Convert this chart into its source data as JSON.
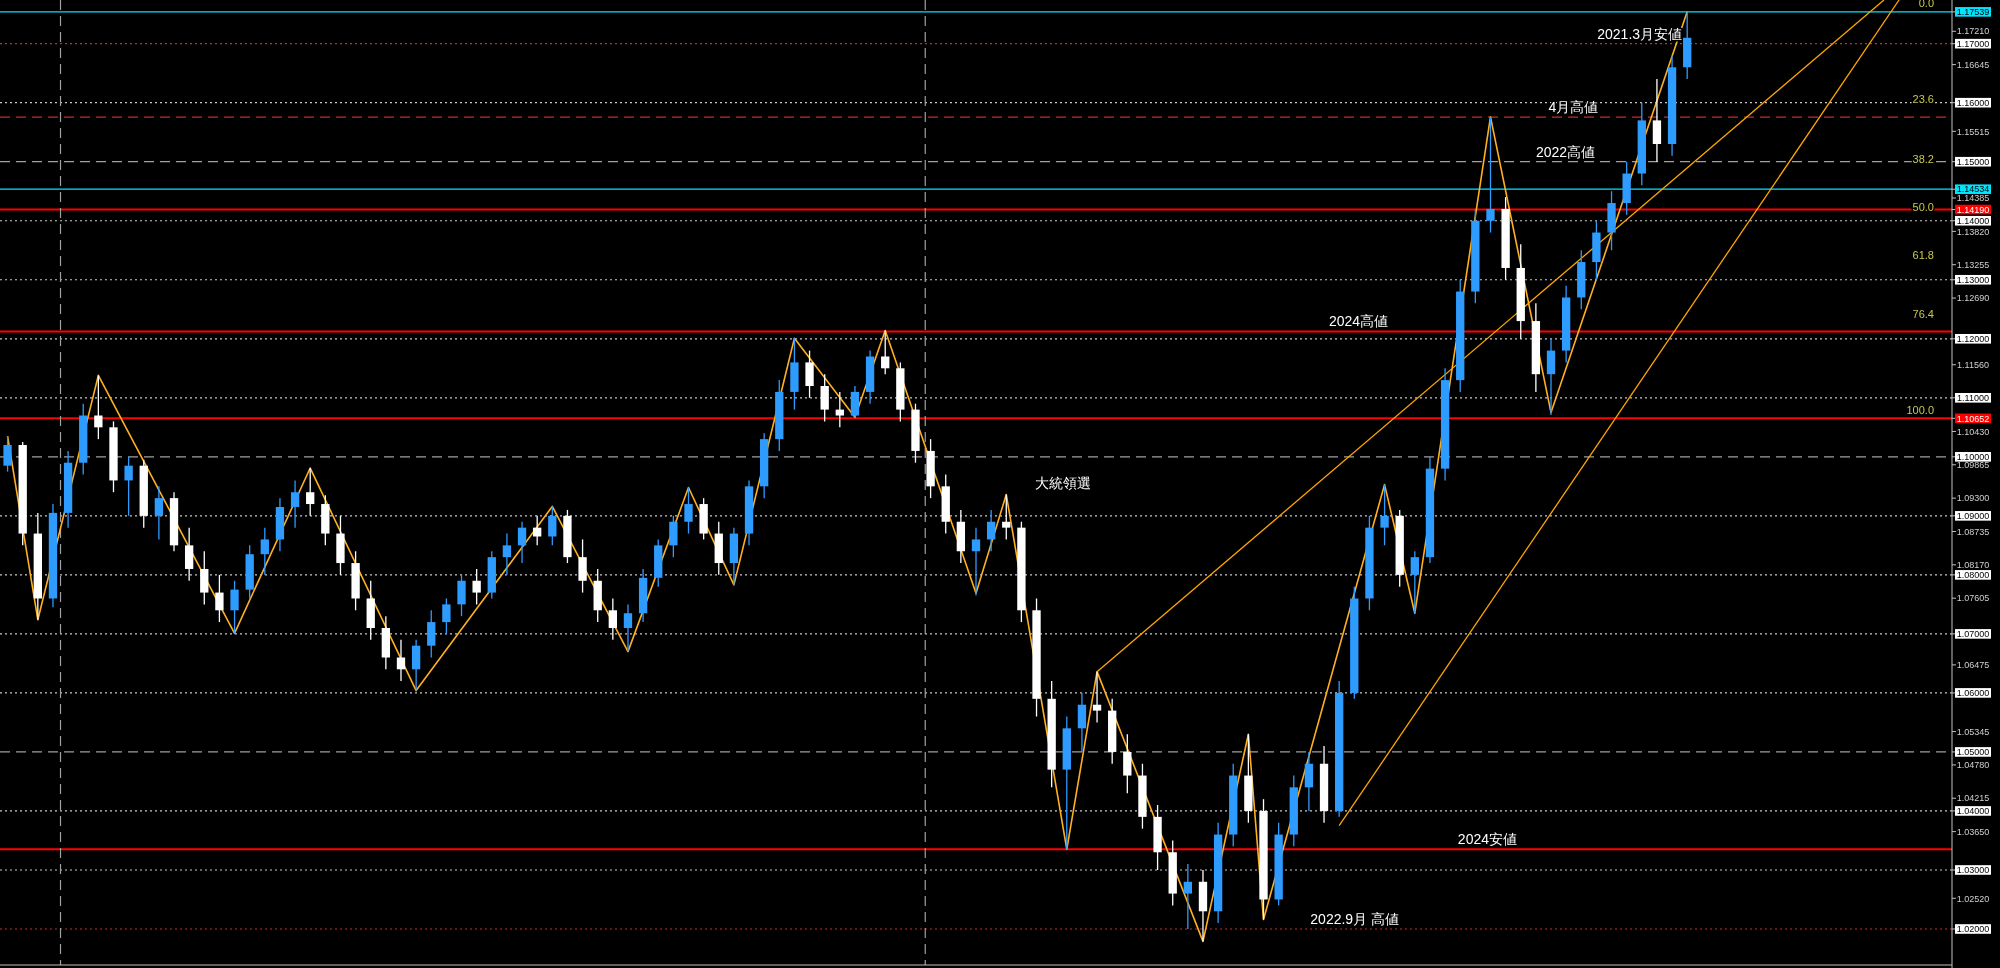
{
  "chart_data": {
    "type": "candlestick",
    "tick_labels": "y",
    "ylim": [
      1.0139,
      1.1774
    ],
    "yticks": [
      {
        "value": 1.17539,
        "label": "1.17539"
      },
      {
        "value": 1.17,
        "label": "1.17000"
      },
      {
        "value": 1.16,
        "label": "1.16000"
      },
      {
        "value": 1.15,
        "label": "1.15000"
      },
      {
        "value": 1.14534,
        "label": "1.14534"
      },
      {
        "value": 1.1419,
        "label": "1.14190"
      },
      {
        "value": 1.14,
        "label": "1.14000"
      },
      {
        "value": 1.13,
        "label": "1.13000"
      },
      {
        "value": 1.12,
        "label": "1.12000"
      },
      {
        "value": 1.11,
        "label": "1.11000"
      },
      {
        "value": 1.10652,
        "label": "1.10652"
      },
      {
        "value": 1.1,
        "label": "1.10000"
      },
      {
        "value": 1.09,
        "label": "1.09000"
      },
      {
        "value": 1.08,
        "label": "1.08000"
      },
      {
        "value": 1.07,
        "label": "1.07000"
      },
      {
        "value": 1.06,
        "label": "1.06000"
      },
      {
        "value": 1.05,
        "label": "1.05000"
      },
      {
        "value": 1.04,
        "label": "1.04000"
      },
      {
        "value": 1.03,
        "label": "1.03000"
      },
      {
        "value": 1.02,
        "label": "1.02000"
      },
      {
        "value": 1.1721,
        "label": "1.17210"
      },
      {
        "value": 1.16645,
        "label": "1.16645"
      },
      {
        "value": 1.15515,
        "label": "1.15515"
      },
      {
        "value": 1.14385,
        "label": "1.14385"
      },
      {
        "value": 1.1382,
        "label": "1.13820"
      },
      {
        "value": 1.13255,
        "label": "1.13255"
      },
      {
        "value": 1.1269,
        "label": "1.12690"
      },
      {
        "value": 1.1156,
        "label": "1.11560"
      },
      {
        "value": 1.1043,
        "label": "1.10430"
      },
      {
        "value": 1.09865,
        "label": "1.09865"
      },
      {
        "value": 1.093,
        "label": "1.09300"
      },
      {
        "value": 1.08735,
        "label": "1.08735"
      },
      {
        "value": 1.0817,
        "label": "1.08170"
      },
      {
        "value": 1.07605,
        "label": "1.07605"
      },
      {
        "value": 1.06475,
        "label": "1.06475"
      },
      {
        "value": 1.05345,
        "label": "1.05345"
      },
      {
        "value": 1.0478,
        "label": "1.04780"
      },
      {
        "value": 1.04215,
        "label": "1.04215"
      },
      {
        "value": 1.0365,
        "label": "1.03650"
      },
      {
        "value": 1.0252,
        "label": "1.02520"
      }
    ],
    "categories": [
      null,
      null,
      null,
      null,
      null,
      null,
      null,
      null,
      null,
      null,
      null,
      null,
      null,
      null,
      null,
      null,
      null,
      null,
      null,
      null,
      null,
      null,
      null,
      null,
      null,
      null,
      null,
      null,
      null,
      null,
      null,
      null,
      null,
      null,
      null,
      null,
      null,
      null,
      null,
      null,
      null,
      null,
      null,
      null,
      null,
      null,
      null,
      null,
      null,
      null,
      null,
      null,
      null,
      null,
      null,
      null,
      null,
      null,
      null,
      null,
      null,
      null,
      null,
      null,
      null,
      null,
      null,
      null,
      null,
      null,
      null,
      null,
      null,
      null,
      null,
      null,
      null,
      null,
      null,
      null,
      null,
      null,
      null,
      null,
      null,
      null,
      null,
      null,
      null,
      null,
      null,
      null,
      null,
      null,
      null,
      null,
      null,
      null,
      null,
      null,
      null,
      null,
      null,
      null,
      null,
      null,
      null,
      null,
      null,
      null,
      null,
      null,
      null,
      null,
      null,
      null,
      null,
      null,
      null,
      null,
      null,
      null,
      null,
      null,
      null,
      null,
      null,
      null,
      null
    ],
    "ohlc": [
      [
        1.0985,
        1.1035,
        1.0975,
        1.102
      ],
      [
        1.102,
        1.1025,
        1.085,
        1.087
      ],
      [
        1.087,
        1.0905,
        1.0724,
        1.076
      ],
      [
        1.076,
        1.092,
        1.0745,
        1.0905
      ],
      [
        1.0905,
        1.101,
        1.088,
        1.099
      ],
      [
        1.099,
        1.109,
        1.097,
        1.107
      ],
      [
        1.107,
        1.1138,
        1.103,
        1.105
      ],
      [
        1.105,
        1.106,
        1.094,
        1.096
      ],
      [
        1.096,
        1.1,
        1.09,
        1.0985
      ],
      [
        1.0985,
        1.0995,
        1.088,
        1.09
      ],
      [
        1.09,
        1.095,
        1.086,
        1.093
      ],
      [
        1.093,
        1.094,
        1.084,
        1.085
      ],
      [
        1.085,
        1.088,
        1.079,
        1.081
      ],
      [
        1.081,
        1.084,
        1.075,
        1.077
      ],
      [
        1.077,
        1.08,
        1.072,
        1.074
      ],
      [
        1.074,
        1.079,
        1.0701,
        1.0775
      ],
      [
        1.0775,
        1.085,
        1.076,
        1.0835
      ],
      [
        1.0835,
        1.088,
        1.08,
        1.086
      ],
      [
        1.086,
        1.093,
        1.084,
        1.0915
      ],
      [
        1.0915,
        1.096,
        1.088,
        1.094
      ],
      [
        1.094,
        1.0981,
        1.09,
        1.092
      ],
      [
        1.092,
        1.0935,
        1.085,
        1.087
      ],
      [
        1.087,
        1.09,
        1.08,
        1.082
      ],
      [
        1.082,
        1.084,
        1.074,
        1.076
      ],
      [
        1.076,
        1.079,
        1.069,
        1.071
      ],
      [
        1.071,
        1.073,
        1.064,
        1.066
      ],
      [
        1.066,
        1.069,
        1.062,
        1.064
      ],
      [
        1.064,
        1.069,
        1.0604,
        1.068
      ],
      [
        1.068,
        1.074,
        1.066,
        1.072
      ],
      [
        1.072,
        1.076,
        1.07,
        1.075
      ],
      [
        1.075,
        1.08,
        1.073,
        1.079
      ],
      [
        1.079,
        1.081,
        1.075,
        1.077
      ],
      [
        1.077,
        1.084,
        1.076,
        1.083
      ],
      [
        1.083,
        1.087,
        1.08,
        1.085
      ],
      [
        1.085,
        1.089,
        1.082,
        1.088
      ],
      [
        1.088,
        1.09,
        1.085,
        1.0865
      ],
      [
        1.0865,
        1.0916,
        1.085,
        1.09
      ],
      [
        1.09,
        1.091,
        1.082,
        1.083
      ],
      [
        1.083,
        1.086,
        1.077,
        1.079
      ],
      [
        1.079,
        1.081,
        1.072,
        1.074
      ],
      [
        1.074,
        1.076,
        1.069,
        1.071
      ],
      [
        1.071,
        1.075,
        1.067,
        1.0735
      ],
      [
        1.0735,
        1.081,
        1.072,
        1.0795
      ],
      [
        1.0795,
        1.086,
        1.078,
        1.085
      ],
      [
        1.085,
        1.09,
        1.083,
        1.089
      ],
      [
        1.089,
        1.0948,
        1.087,
        1.092
      ],
      [
        1.092,
        1.093,
        1.086,
        1.087
      ],
      [
        1.087,
        1.089,
        1.08,
        1.082
      ],
      [
        1.082,
        1.088,
        1.0783,
        1.087
      ],
      [
        1.087,
        1.096,
        1.085,
        1.095
      ],
      [
        1.095,
        1.104,
        1.093,
        1.103
      ],
      [
        1.103,
        1.113,
        1.101,
        1.111
      ],
      [
        1.111,
        1.1201,
        1.108,
        1.116
      ],
      [
        1.116,
        1.118,
        1.11,
        1.112
      ],
      [
        1.112,
        1.114,
        1.106,
        1.108
      ],
      [
        1.108,
        1.111,
        1.105,
        1.107
      ],
      [
        1.107,
        1.112,
        1.1067,
        1.111
      ],
      [
        1.111,
        1.118,
        1.109,
        1.117
      ],
      [
        1.117,
        1.1214,
        1.114,
        1.115
      ],
      [
        1.115,
        1.116,
        1.106,
        1.108
      ],
      [
        1.108,
        1.109,
        1.099,
        1.101
      ],
      [
        1.101,
        1.103,
        1.093,
        1.095
      ],
      [
        1.095,
        1.097,
        1.087,
        1.089
      ],
      [
        1.089,
        1.091,
        1.082,
        1.084
      ],
      [
        1.084,
        1.088,
        1.0765,
        1.086
      ],
      [
        1.086,
        1.091,
        1.084,
        1.089
      ],
      [
        1.089,
        1.0936,
        1.086,
        1.088
      ],
      [
        1.088,
        1.089,
        1.072,
        1.074
      ],
      [
        1.074,
        1.076,
        1.056,
        1.059
      ],
      [
        1.059,
        1.062,
        1.044,
        1.047
      ],
      [
        1.047,
        1.056,
        1.0335,
        1.054
      ],
      [
        1.054,
        1.06,
        1.05,
        1.058
      ],
      [
        1.058,
        1.0636,
        1.055,
        1.057
      ],
      [
        1.057,
        1.059,
        1.048,
        1.05
      ],
      [
        1.05,
        1.053,
        1.043,
        1.046
      ],
      [
        1.046,
        1.048,
        1.037,
        1.039
      ],
      [
        1.039,
        1.041,
        1.03,
        1.033
      ],
      [
        1.033,
        1.035,
        1.024,
        1.026
      ],
      [
        1.026,
        1.031,
        1.02,
        1.028
      ],
      [
        1.028,
        1.03,
        1.0179,
        1.023
      ],
      [
        1.023,
        1.038,
        1.021,
        1.036
      ],
      [
        1.036,
        1.048,
        1.034,
        1.046
      ],
      [
        1.046,
        1.053,
        1.038,
        1.04
      ],
      [
        1.04,
        1.042,
        1.0216,
        1.025
      ],
      [
        1.025,
        1.038,
        1.024,
        1.036
      ],
      [
        1.036,
        1.046,
        1.034,
        1.044
      ],
      [
        1.044,
        1.05,
        1.04,
        1.048
      ],
      [
        1.048,
        1.051,
        1.038,
        1.04
      ],
      [
        1.04,
        1.062,
        1.039,
        1.06
      ],
      [
        1.06,
        1.078,
        1.059,
        1.076
      ],
      [
        1.076,
        1.09,
        1.074,
        1.088
      ],
      [
        1.088,
        1.0953,
        1.085,
        1.09
      ],
      [
        1.09,
        1.091,
        1.078,
        1.08
      ],
      [
        1.08,
        1.084,
        1.0735,
        1.083
      ],
      [
        1.083,
        1.1,
        1.082,
        1.098
      ],
      [
        1.098,
        1.115,
        1.096,
        1.113
      ],
      [
        1.113,
        1.13,
        1.111,
        1.128
      ],
      [
        1.128,
        1.142,
        1.126,
        1.14
      ],
      [
        1.14,
        1.1576,
        1.138,
        1.142
      ],
      [
        1.142,
        1.144,
        1.13,
        1.132
      ],
      [
        1.132,
        1.136,
        1.12,
        1.123
      ],
      [
        1.123,
        1.126,
        1.111,
        1.114
      ],
      [
        1.114,
        1.12,
        1.1071,
        1.118
      ],
      [
        1.118,
        1.129,
        1.116,
        1.127
      ],
      [
        1.127,
        1.135,
        1.125,
        1.133
      ],
      [
        1.133,
        1.14,
        1.13,
        1.138
      ],
      [
        1.138,
        1.145,
        1.135,
        1.143
      ],
      [
        1.143,
        1.15,
        1.141,
        1.148
      ],
      [
        1.148,
        1.16,
        1.146,
        1.157
      ],
      [
        1.157,
        1.164,
        1.15,
        1.153
      ],
      [
        1.153,
        1.168,
        1.151,
        1.166
      ],
      [
        1.166,
        1.1754,
        1.164,
        1.171
      ],
      null,
      null,
      null,
      null,
      null,
      null,
      null,
      null,
      null,
      null,
      null,
      null,
      null,
      null,
      null,
      null,
      null
    ],
    "series": [
      {
        "type": "line",
        "color": "#ffb020",
        "values": [
          1.1035,
          null,
          1.0724,
          null,
          null,
          null,
          1.1138,
          null,
          null,
          null,
          null,
          null,
          null,
          null,
          null,
          1.0701,
          null,
          null,
          null,
          null,
          1.0981,
          null,
          null,
          null,
          null,
          null,
          null,
          1.0604,
          null,
          null,
          null,
          null,
          null,
          null,
          null,
          null,
          1.0916,
          null,
          null,
          null,
          null,
          1.067,
          null,
          null,
          null,
          1.0948,
          null,
          null,
          1.0783,
          null,
          null,
          null,
          1.1201,
          null,
          null,
          null,
          1.1067,
          null,
          1.1214,
          null,
          null,
          null,
          null,
          null,
          1.0769,
          null,
          1.0936,
          null,
          null,
          null,
          1.0335,
          null,
          1.0636,
          null,
          null,
          null,
          null,
          null,
          null,
          1.0179,
          null,
          null,
          1.053,
          1.0216,
          null,
          null,
          null,
          null,
          null,
          null,
          null,
          1.0953,
          null,
          1.0735,
          null,
          null,
          null,
          null,
          1.1576,
          null,
          null,
          null,
          1.1075,
          null,
          null,
          null,
          null,
          null,
          null,
          null,
          null,
          1.1754,
          null,
          null,
          null,
          null,
          null,
          null,
          null,
          null,
          null,
          null,
          null,
          null,
          null,
          null,
          null,
          null,
          null
        ]
      },
      {
        "type": "line",
        "color": "#ffa500",
        "values": [
          null,
          null,
          null,
          null,
          null,
          null,
          null,
          null,
          null,
          null,
          null,
          null,
          null,
          null,
          null,
          null,
          null,
          null,
          null,
          null,
          null,
          null,
          null,
          null,
          null,
          null,
          null,
          null,
          null,
          null,
          null,
          null,
          null,
          null,
          null,
          null,
          null,
          null,
          null,
          null,
          null,
          null,
          null,
          null,
          null,
          null,
          null,
          null,
          null,
          null,
          null,
          null,
          null,
          null,
          null,
          null,
          null,
          null,
          null,
          null,
          null,
          null,
          null,
          null,
          null,
          null,
          null,
          null,
          null,
          null,
          null,
          null,
          1.0636,
          null,
          null,
          null,
          null,
          null,
          null,
          null,
          null,
          null,
          null,
          null,
          null,
          null,
          null,
          null,
          null,
          null,
          null,
          null,
          null,
          null,
          null,
          null,
          null,
          null,
          null,
          null,
          null,
          null,
          null,
          null,
          null,
          null,
          null,
          null,
          null,
          null,
          null,
          null,
          null,
          null,
          null,
          null,
          null,
          null,
          null,
          null,
          null,
          null,
          null,
          null,
          1.1774,
          null,
          null,
          null,
          null
        ]
      },
      {
        "type": "line",
        "color": "#ffa500",
        "values": [
          null,
          null,
          null,
          null,
          null,
          null,
          null,
          null,
          null,
          null,
          null,
          null,
          null,
          null,
          null,
          null,
          null,
          null,
          null,
          null,
          null,
          null,
          null,
          null,
          null,
          null,
          null,
          null,
          null,
          null,
          null,
          null,
          null,
          null,
          null,
          null,
          null,
          null,
          null,
          null,
          null,
          null,
          null,
          null,
          null,
          null,
          null,
          null,
          null,
          null,
          null,
          null,
          null,
          null,
          null,
          null,
          null,
          null,
          null,
          null,
          null,
          null,
          null,
          null,
          null,
          null,
          null,
          null,
          null,
          null,
          null,
          null,
          null,
          null,
          null,
          null,
          null,
          null,
          null,
          null,
          null,
          null,
          null,
          null,
          null,
          null,
          null,
          null,
          1.0375,
          null,
          null,
          null,
          null,
          null,
          null,
          null,
          null,
          null,
          null,
          null,
          null,
          null,
          null,
          null,
          null,
          null,
          null,
          null,
          null,
          null,
          null,
          null,
          null,
          null,
          null,
          null,
          null,
          null,
          null,
          null,
          null,
          null,
          null,
          null,
          null,
          1.1774,
          null,
          null,
          null
        ]
      }
    ],
    "ref_lines": [
      {
        "axis": "y",
        "value": 1.17539,
        "color": "#00e5ff",
        "line_style": "solid"
      },
      {
        "axis": "y",
        "value": 1.17,
        "label": "2021.3月安値",
        "color": "#c03030",
        "line_style": "dotted"
      },
      {
        "axis": "y",
        "value": 1.16,
        "color": "#c8c8c8",
        "line_style": "dotted"
      },
      {
        "axis": "y",
        "value": 1.15755,
        "label": "4月高値",
        "color": "#c03030",
        "line_style": "dashed"
      },
      {
        "axis": "y",
        "value": 1.15,
        "label": "2022高値",
        "color": "#a0a0a0",
        "line_style": "dashed"
      },
      {
        "axis": "y",
        "value": 1.14534,
        "color": "#00e5ff",
        "line_style": "solid"
      },
      {
        "axis": "y",
        "value": 1.1419,
        "color": "#ff0000",
        "line_style": "solid"
      },
      {
        "axis": "y",
        "value": 1.14,
        "color": "#c8c8c8",
        "line_style": "dotted"
      },
      {
        "axis": "y",
        "value": 1.13,
        "color": "#c8c8c8",
        "line_style": "dotted"
      },
      {
        "axis": "y",
        "value": 1.12125,
        "label": "2024高値",
        "color": "#ff0000",
        "line_style": "solid"
      },
      {
        "axis": "y",
        "value": 1.12,
        "color": "#c8c8c8",
        "line_style": "dotted"
      },
      {
        "axis": "y",
        "value": 1.11,
        "color": "#c8c8c8",
        "line_style": "dotted"
      },
      {
        "axis": "y",
        "value": 1.10652,
        "color": "#ff0000",
        "line_style": "solid"
      },
      {
        "axis": "y",
        "value": 1.1,
        "color": "#a0a0a0",
        "line_style": "dashed"
      },
      {
        "axis": "y",
        "value": 1.09,
        "color": "#c8c8c8",
        "line_style": "dotted"
      },
      {
        "axis": "y",
        "value": 1.08,
        "color": "#c8c8c8",
        "line_style": "dotted"
      },
      {
        "axis": "y",
        "value": 1.07,
        "color": "#c8c8c8",
        "line_style": "dotted"
      },
      {
        "axis": "y",
        "value": 1.06,
        "color": "#c8c8c8",
        "line_style": "dotted"
      },
      {
        "axis": "y",
        "value": 1.05,
        "color": "#a0a0a0",
        "line_style": "dashed"
      },
      {
        "axis": "y",
        "value": 1.04,
        "color": "#c8c8c8",
        "line_style": "dotted"
      },
      {
        "axis": "y",
        "value": 1.0335,
        "label": "2024安値",
        "color": "#ff0000",
        "line_style": "solid"
      },
      {
        "axis": "y",
        "value": 1.03,
        "color": "#c8c8c8",
        "line_style": "dotted"
      },
      {
        "axis": "y",
        "value": 1.02,
        "label": "2022.9月 高値",
        "color": "#c03030",
        "line_style": "dotted"
      }
    ],
    "annotations": [
      "大統領選",
      {
        "text": "0.0",
        "y": 1.1757
      },
      {
        "text": "23.6",
        "y": 1.1594
      },
      {
        "text": "38.2",
        "y": 1.1493
      },
      {
        "text": "50.0",
        "y": 1.1412
      },
      "61.8",
      "76.4",
      {
        "text": "100.0",
        "y": 1.1067
      }
    ]
  }
}
